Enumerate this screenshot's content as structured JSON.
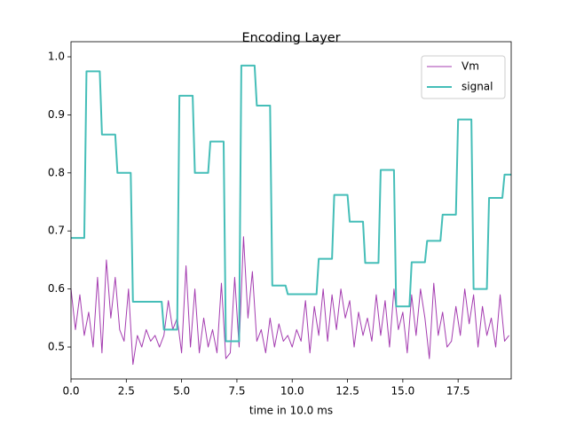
{
  "chart_data": {
    "type": "line",
    "title": "Encoding Layer",
    "x_label": "time in 10.0 ms",
    "xlim": [
      0,
      19.9
    ],
    "ylim": [
      0.445,
      1.026
    ],
    "xticks": [
      {
        "value": 0,
        "label": "0.0"
      },
      2.5,
      {
        "value": 5,
        "label": "5.0"
      },
      7.5,
      {
        "value": 10,
        "label": "10.0"
      },
      12.5,
      {
        "value": 15,
        "label": "15.0"
      },
      17.5
    ],
    "yticks": [
      0.5,
      0.6,
      0.7,
      0.8,
      0.9,
      {
        "value": 1,
        "label": "1.0"
      }
    ],
    "legend": "upper right",
    "series": [
      {
        "name": "Vm",
        "color": "#a43cb0",
        "width": 1,
        "x": [
          0,
          0.2,
          0.4,
          0.6,
          0.8,
          1,
          1.2,
          1.4,
          1.6,
          1.8,
          2,
          2.2,
          2.4,
          2.6,
          2.8,
          3,
          3.2,
          3.4,
          3.6,
          3.8,
          4,
          4.2,
          4.4,
          4.6,
          4.8,
          5,
          5.2,
          5.4,
          5.6,
          5.8,
          6,
          6.2,
          6.4,
          6.6,
          6.8,
          7,
          7.2,
          7.4,
          7.6,
          7.8,
          8,
          8.2,
          8.4,
          8.6,
          8.8,
          9,
          9.2,
          9.4,
          9.6,
          9.8,
          10,
          10.2,
          10.4,
          10.6,
          10.8,
          11,
          11.2,
          11.4,
          11.6,
          11.8,
          12,
          12.2,
          12.4,
          12.6,
          12.8,
          13,
          13.2,
          13.4,
          13.6,
          13.8,
          14,
          14.2,
          14.4,
          14.6,
          14.8,
          15,
          15.2,
          15.4,
          15.6,
          15.8,
          16,
          16.2,
          16.4,
          16.6,
          16.8,
          17,
          17.2,
          17.4,
          17.6,
          17.8,
          18,
          18.2,
          18.4,
          18.6,
          18.8,
          19,
          19.2,
          19.4,
          19.6,
          19.8
        ],
        "values": [
          0.6,
          0.53,
          0.59,
          0.52,
          0.56,
          0.5,
          0.62,
          0.49,
          0.65,
          0.55,
          0.62,
          0.53,
          0.51,
          0.6,
          0.47,
          0.52,
          0.5,
          0.53,
          0.51,
          0.52,
          0.5,
          0.52,
          0.58,
          0.53,
          0.55,
          0.49,
          0.64,
          0.5,
          0.6,
          0.49,
          0.55,
          0.5,
          0.53,
          0.49,
          0.61,
          0.48,
          0.49,
          0.62,
          0.5,
          0.69,
          0.55,
          0.63,
          0.51,
          0.53,
          0.49,
          0.55,
          0.5,
          0.54,
          0.51,
          0.52,
          0.5,
          0.53,
          0.51,
          0.58,
          0.49,
          0.57,
          0.52,
          0.6,
          0.51,
          0.59,
          0.53,
          0.6,
          0.55,
          0.58,
          0.5,
          0.56,
          0.52,
          0.55,
          0.51,
          0.59,
          0.52,
          0.58,
          0.5,
          0.6,
          0.53,
          0.56,
          0.49,
          0.59,
          0.52,
          0.6,
          0.55,
          0.48,
          0.61,
          0.52,
          0.56,
          0.5,
          0.51,
          0.57,
          0.52,
          0.6,
          0.54,
          0.59,
          0.5,
          0.57,
          0.52,
          0.55,
          0.5,
          0.59,
          0.51,
          0.52
        ]
      },
      {
        "name": "signal",
        "color": "#45beb8",
        "width": 2,
        "x": [
          0,
          0.6,
          0.7,
          1.3,
          1.4,
          2.0,
          2.1,
          2.7,
          2.8,
          4.1,
          4.2,
          4.8,
          4.9,
          5.5,
          5.6,
          6.2,
          6.3,
          6.9,
          7.0,
          7.6,
          7.7,
          8.3,
          8.4,
          9.0,
          9.1,
          9.7,
          9.8,
          11.1,
          11.2,
          11.8,
          11.9,
          12.5,
          12.6,
          13.2,
          13.3,
          13.9,
          14.0,
          14.6,
          14.7,
          15.3,
          15.4,
          16.0,
          16.1,
          16.7,
          16.8,
          17.4,
          17.5,
          18.1,
          18.2,
          18.8,
          18.9,
          19.5,
          19.6,
          19.9
        ],
        "values": [
          0.688,
          0.688,
          0.975,
          0.975,
          0.866,
          0.866,
          0.8,
          0.8,
          0.578,
          0.578,
          0.53,
          0.53,
          0.933,
          0.933,
          0.8,
          0.8,
          0.854,
          0.854,
          0.51,
          0.51,
          0.985,
          0.985,
          0.916,
          0.916,
          0.606,
          0.606,
          0.591,
          0.591,
          0.652,
          0.652,
          0.762,
          0.762,
          0.716,
          0.716,
          0.645,
          0.645,
          0.805,
          0.805,
          0.57,
          0.57,
          0.646,
          0.646,
          0.683,
          0.683,
          0.728,
          0.728,
          0.892,
          0.892,
          0.6,
          0.6,
          0.757,
          0.757,
          0.797,
          0.797
        ]
      }
    ]
  }
}
